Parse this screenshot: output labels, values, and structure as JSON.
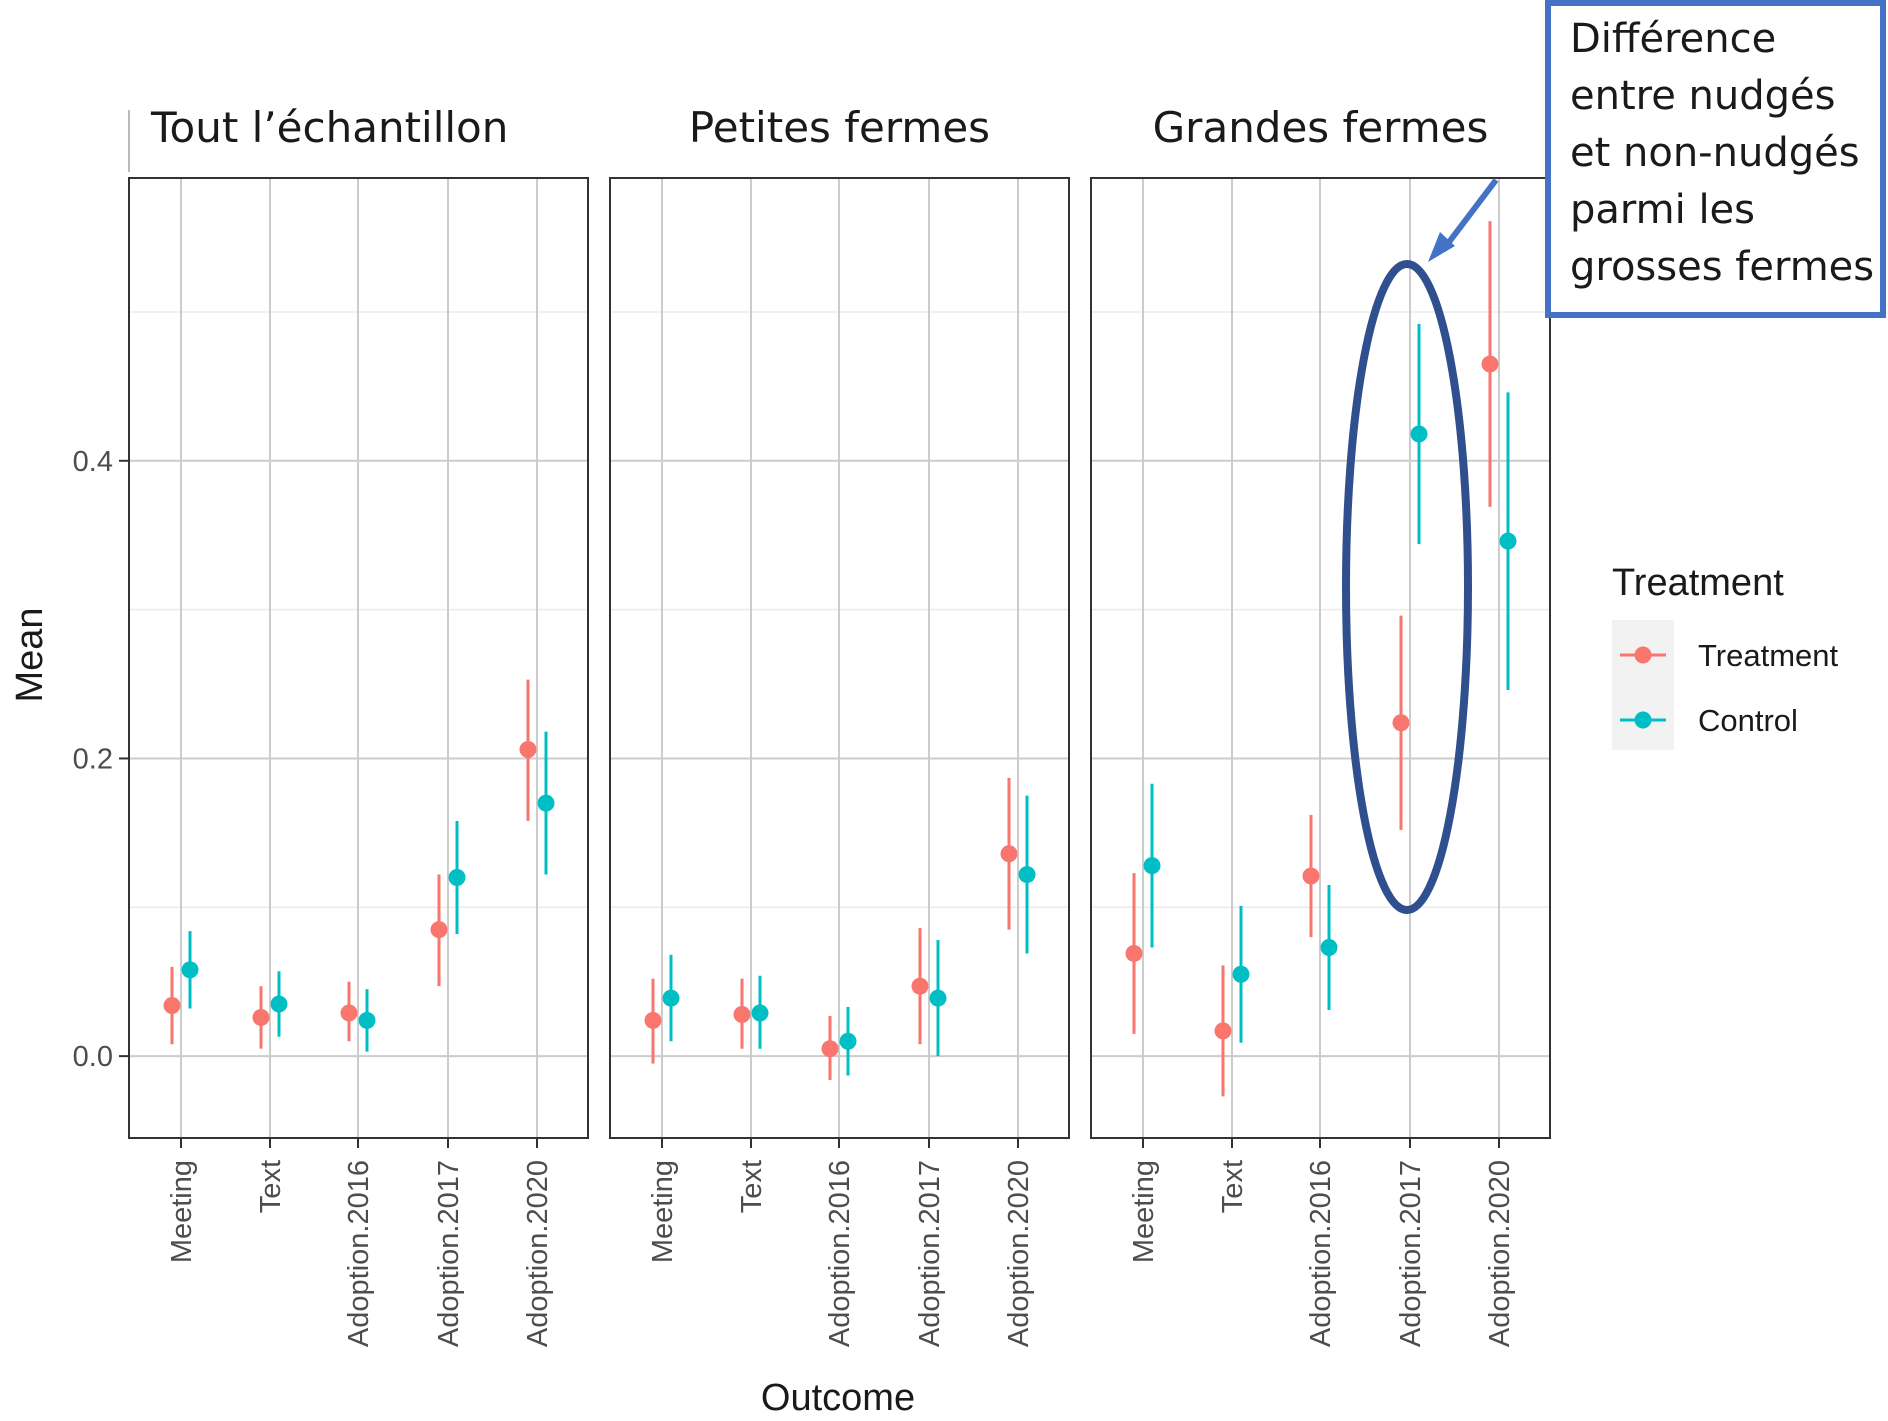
{
  "chart_data": {
    "type": "scatter",
    "ylabel": "Mean",
    "xlabel": "Outcome",
    "yticks": [
      "0.0",
      "0.2",
      "0.4"
    ],
    "ylim": [
      -0.055,
      0.59
    ],
    "categories": [
      "Meeting",
      "Text",
      "Adoption.2016",
      "Adoption.2017",
      "Adoption.2020"
    ],
    "legend": {
      "title": "Treatment",
      "position": "right",
      "items": [
        {
          "label": "Treatment",
          "color": "#F8766D"
        },
        {
          "label": "Control",
          "color": "#00BFC4"
        }
      ]
    },
    "panels": [
      {
        "title": "Tout l’échantillon",
        "series": [
          {
            "name": "Treatment",
            "color": "#F8766D",
            "mean": [
              0.034,
              0.026,
              0.029,
              0.085,
              0.206
            ],
            "lower": [
              0.008,
              0.005,
              0.01,
              0.047,
              0.158
            ],
            "upper": [
              0.06,
              0.047,
              0.05,
              0.122,
              0.253
            ]
          },
          {
            "name": "Control",
            "color": "#00BFC4",
            "mean": [
              0.058,
              0.035,
              0.024,
              0.12,
              0.17
            ],
            "lower": [
              0.032,
              0.013,
              0.003,
              0.082,
              0.122
            ],
            "upper": [
              0.084,
              0.057,
              0.045,
              0.158,
              0.218
            ]
          }
        ]
      },
      {
        "title": "Petites fermes",
        "series": [
          {
            "name": "Treatment",
            "color": "#F8766D",
            "mean": [
              0.024,
              0.028,
              0.005,
              0.047,
              0.136
            ],
            "lower": [
              -0.005,
              0.005,
              -0.016,
              0.008,
              0.085
            ],
            "upper": [
              0.052,
              0.052,
              0.027,
              0.086,
              0.187
            ]
          },
          {
            "name": "Control",
            "color": "#00BFC4",
            "mean": [
              0.039,
              0.029,
              0.01,
              0.039,
              0.122
            ],
            "lower": [
              0.01,
              0.005,
              -0.013,
              0.0,
              0.069
            ],
            "upper": [
              0.068,
              0.054,
              0.033,
              0.078,
              0.175
            ]
          }
        ]
      },
      {
        "title": "Grandes fermes",
        "series": [
          {
            "name": "Treatment",
            "color": "#F8766D",
            "mean": [
              0.069,
              0.017,
              0.121,
              0.224,
              0.465
            ],
            "lower": [
              0.015,
              -0.027,
              0.08,
              0.152,
              0.369
            ],
            "upper": [
              0.123,
              0.061,
              0.162,
              0.296,
              0.561
            ]
          },
          {
            "name": "Control",
            "color": "#00BFC4",
            "mean": [
              0.128,
              0.055,
              0.073,
              0.418,
              0.346
            ],
            "lower": [
              0.073,
              0.009,
              0.031,
              0.344,
              0.246
            ],
            "upper": [
              0.183,
              0.101,
              0.115,
              0.492,
              0.446
            ]
          }
        ]
      }
    ],
    "annotation": {
      "lines": [
        "Différence",
        "entre nudgés",
        "et non-nudgés",
        "parmi les",
        "grosses fermes"
      ],
      "color": "#4472C4",
      "ellipse_color": "#2F4F8F",
      "target": {
        "panel": 2,
        "category": "Adoption.2017"
      }
    }
  }
}
